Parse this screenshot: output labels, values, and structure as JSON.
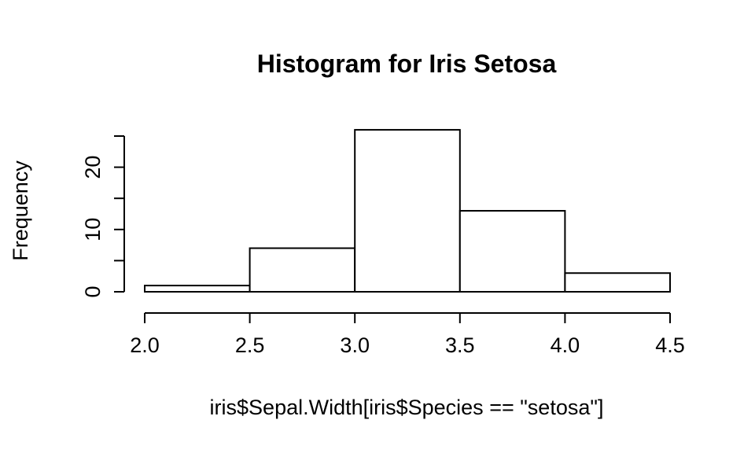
{
  "chart_data": {
    "type": "bar",
    "title": "Histogram for Iris Setosa",
    "xlabel": "iris$Sepal.Width[iris$Species == \"setosa\"]",
    "ylabel": "Frequency",
    "bins": [
      {
        "start": 2.0,
        "end": 2.5,
        "count": 1
      },
      {
        "start": 2.5,
        "end": 3.0,
        "count": 7
      },
      {
        "start": 3.0,
        "end": 3.5,
        "count": 26
      },
      {
        "start": 3.5,
        "end": 4.0,
        "count": 13
      },
      {
        "start": 4.0,
        "end": 4.5,
        "count": 3
      }
    ],
    "xlim": [
      2.0,
      4.5
    ],
    "ylim": [
      0,
      25
    ],
    "x_ticks": [
      2.0,
      2.5,
      3.0,
      3.5,
      4.0,
      4.5
    ],
    "x_tick_labels": [
      "2.0",
      "2.5",
      "3.0",
      "3.5",
      "4.0",
      "4.5"
    ],
    "y_ticks": [
      0,
      5,
      10,
      15,
      20,
      25
    ],
    "y_tick_labels": [
      "0",
      "",
      "10",
      "",
      "20",
      ""
    ],
    "grid": false,
    "legend": "none",
    "bar_fill": "#ffffff",
    "bar_stroke": "#000000"
  }
}
